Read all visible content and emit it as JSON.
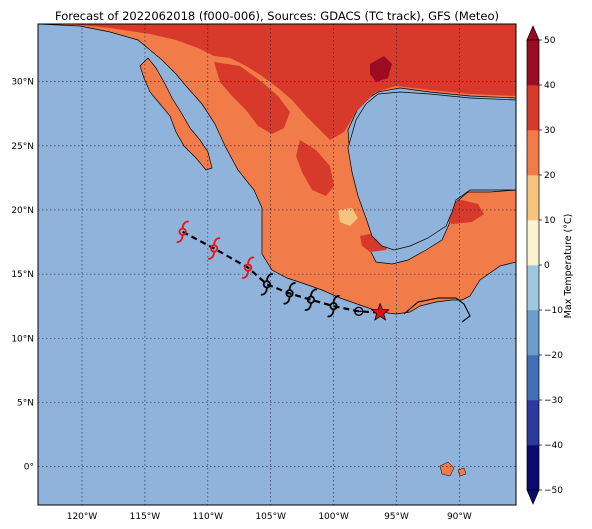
{
  "title": "Forecast of 2022062018 (f000-006), Sources: GDACS (TC track), GFS (Meteo)",
  "map": {
    "lon_range": [
      -123.5,
      -85.5
    ],
    "lat_range": [
      -3.0,
      34.5
    ],
    "lon_ticks": [
      {
        "value": -120,
        "label": "120°W"
      },
      {
        "value": -115,
        "label": "115°W"
      },
      {
        "value": -110,
        "label": "110°W"
      },
      {
        "value": -105,
        "label": "105°W"
      },
      {
        "value": -100,
        "label": "100°W"
      },
      {
        "value": -95,
        "label": "95°W"
      },
      {
        "value": -90,
        "label": "90°W"
      }
    ],
    "lat_ticks": [
      {
        "value": 30,
        "label": "30°N"
      },
      {
        "value": 25,
        "label": "25°N"
      },
      {
        "value": 20,
        "label": "20°N"
      },
      {
        "value": 15,
        "label": "15°N"
      },
      {
        "value": 10,
        "label": "10°N"
      },
      {
        "value": 5,
        "label": "5°N"
      },
      {
        "value": 0,
        "label": "0°"
      }
    ],
    "gridlines": true,
    "ocean_color": "#8fb3da"
  },
  "colorbar": {
    "label": "Max Temperature (°C)",
    "ticks": [
      "50",
      "40",
      "30",
      "20",
      "10",
      "0",
      "−10",
      "−20",
      "−30",
      "−40",
      "−50"
    ],
    "bins": [
      "#0a0a6e",
      "#2b3a9c",
      "#3f6fb4",
      "#6a9ccc",
      "#9fc7e0",
      "#d7ecf3",
      "#fbf3cf",
      "#f7c47f",
      "#f17c4a",
      "#d73a2a",
      "#9b0b21"
    ],
    "extend": "both"
  },
  "track": {
    "positions": [
      {
        "lon": -112.0,
        "lat": 18.3,
        "type": "storm",
        "color": "#ee1111"
      },
      {
        "lon": -109.5,
        "lat": 17.0,
        "type": "storm",
        "color": "#ee1111"
      },
      {
        "lon": -106.8,
        "lat": 15.5,
        "type": "storm",
        "color": "#ee1111"
      },
      {
        "lon": -105.3,
        "lat": 14.2,
        "type": "depression",
        "color": "#000000"
      },
      {
        "lon": -103.5,
        "lat": 13.5,
        "type": "depression",
        "color": "#000000"
      },
      {
        "lon": -101.8,
        "lat": 13.0,
        "type": "depression",
        "color": "#000000"
      },
      {
        "lon": -100.0,
        "lat": 12.5,
        "type": "depression",
        "color": "#000000"
      },
      {
        "lon": -98.0,
        "lat": 12.1,
        "type": "disturbance",
        "color": "#000000"
      },
      {
        "lon": -96.3,
        "lat": 12.0,
        "type": "current-position",
        "color": "#dd1111"
      }
    ]
  }
}
